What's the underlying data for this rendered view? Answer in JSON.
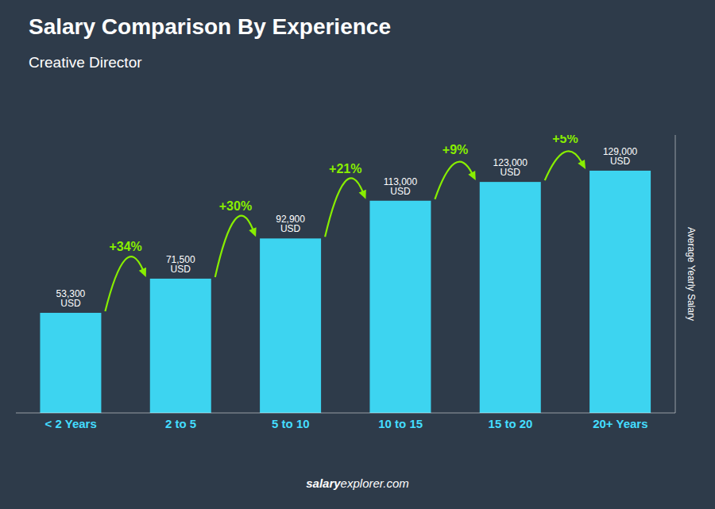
{
  "chart_data": {
    "type": "bar",
    "title": "Salary Comparison By Experience",
    "subtitle": "Creative Director",
    "categories": [
      "< 2 Years",
      "2 to 5",
      "5 to 10",
      "10 to 15",
      "15 to 20",
      "20+ Years"
    ],
    "values": [
      53300,
      71500,
      92900,
      113000,
      123000,
      129000
    ],
    "value_labels": [
      "53,300 USD",
      "71,500 USD",
      "92,900 USD",
      "113,000 USD",
      "123,000 USD",
      "129,000 USD"
    ],
    "data_labels": true,
    "annotations": [
      "+34%",
      "+30%",
      "+21%",
      "+9%",
      "+5%"
    ],
    "ylabel": "Average Yearly Salary",
    "footer": [
      "salary",
      "explorer.com"
    ],
    "color": "#3dd4f0",
    "ylim": [
      0,
      148000
    ],
    "yticks": [],
    "tick_labels": "x",
    "grid": false
  }
}
